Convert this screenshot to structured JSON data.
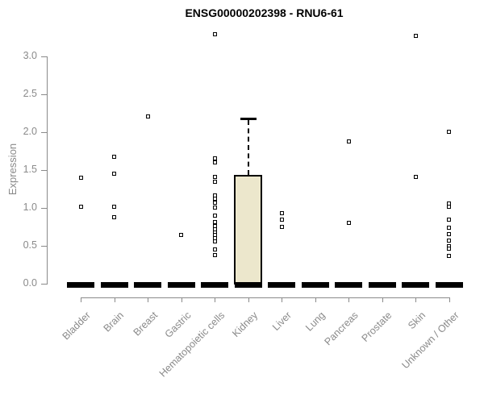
{
  "chart_data": {
    "type": "boxplot",
    "title": "ENSG00000202398 - RNU6-61",
    "ylabel": "Expression",
    "xlabel": "",
    "ylim": [
      0,
      3.3
    ],
    "grid": false,
    "legend": false,
    "axis_color": "#8a8a8a",
    "box_fill": "#ece7cc",
    "point_color": "#000000",
    "yticks": [
      {
        "label": "0.0",
        "value": 0.0
      },
      {
        "label": "0.5",
        "value": 0.5
      },
      {
        "label": "1.0",
        "value": 1.0
      },
      {
        "label": "1.5",
        "value": 1.5
      },
      {
        "label": "2.0",
        "value": 2.0
      },
      {
        "label": "2.5",
        "value": 2.5
      },
      {
        "label": "3.0",
        "value": 3.0
      }
    ],
    "categories": [
      "Bladder",
      "Brain",
      "Breast",
      "Gastric",
      "Hematopoietic cells",
      "Kidney",
      "Liver",
      "Lung",
      "Pancreas",
      "Prostate",
      "Skin",
      "Unknown / Other"
    ],
    "boxes": [
      {
        "category": "Bladder",
        "median": 0,
        "q1": 0,
        "q3": 0,
        "whisker_high": 0,
        "outliers": [
          1.4,
          1.02
        ]
      },
      {
        "category": "Brain",
        "median": 0,
        "q1": 0,
        "q3": 0,
        "whisker_high": 0,
        "outliers": [
          1.68,
          1.45,
          1.02,
          0.88
        ]
      },
      {
        "category": "Breast",
        "median": 0,
        "q1": 0,
        "q3": 0,
        "whisker_high": 0,
        "outliers": [
          2.21
        ]
      },
      {
        "category": "Gastric",
        "median": 0,
        "q1": 0,
        "q3": 0,
        "whisker_high": 0,
        "outliers": [
          0.64
        ]
      },
      {
        "category": "Hematopoietic cells",
        "median": 0,
        "q1": 0,
        "q3": 0,
        "whisker_high": 0,
        "outliers": [
          3.29,
          1.65,
          1.6,
          1.41,
          1.35,
          1.16,
          1.12,
          1.07,
          1.01,
          0.9,
          0.81,
          0.76,
          0.72,
          0.68,
          0.64,
          0.6,
          0.56,
          0.45,
          0.38
        ]
      },
      {
        "category": "Kidney",
        "median": 0,
        "q1": 0,
        "q3": 1.44,
        "whisker_high": 2.18,
        "outliers": []
      },
      {
        "category": "Liver",
        "median": 0,
        "q1": 0,
        "q3": 0,
        "whisker_high": 0,
        "outliers": [
          0.93,
          0.85,
          0.75
        ]
      },
      {
        "category": "Lung",
        "median": 0,
        "q1": 0,
        "q3": 0,
        "whisker_high": 0,
        "outliers": []
      },
      {
        "category": "Pancreas",
        "median": 0,
        "q1": 0,
        "q3": 0,
        "whisker_high": 0,
        "outliers": [
          1.88,
          0.8
        ]
      },
      {
        "category": "Prostate",
        "median": 0,
        "q1": 0,
        "q3": 0,
        "whisker_high": 0,
        "outliers": []
      },
      {
        "category": "Skin",
        "median": 0,
        "q1": 0,
        "q3": 0,
        "whisker_high": 0,
        "outliers": [
          3.27,
          1.41
        ]
      },
      {
        "category": "Unknown / Other",
        "median": 0,
        "q1": 0,
        "q3": 0,
        "whisker_high": 0,
        "outliers": [
          2.01,
          1.06,
          1.02,
          0.85,
          0.74,
          0.65,
          0.57,
          0.5,
          0.46,
          0.37
        ]
      }
    ]
  }
}
